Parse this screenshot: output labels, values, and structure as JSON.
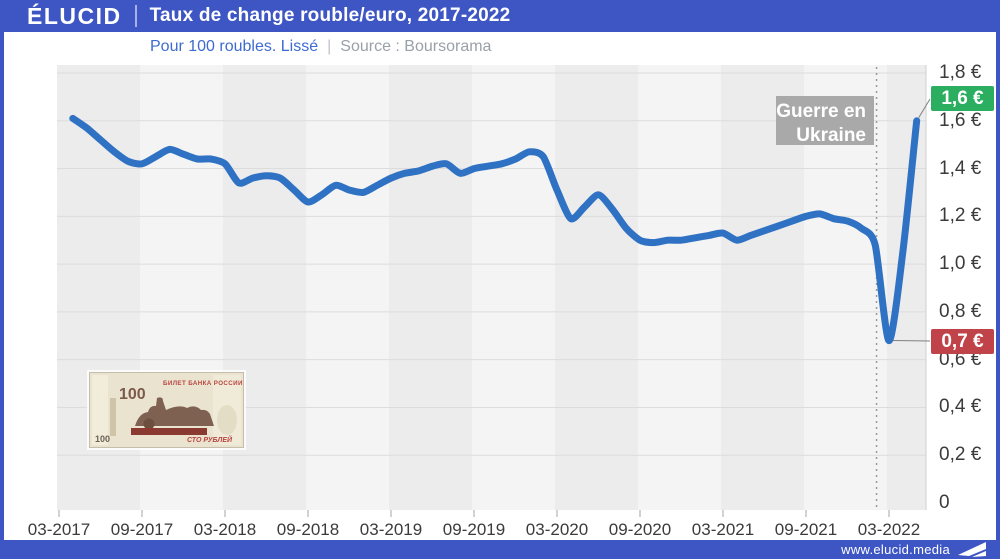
{
  "header": {
    "logo": "ÉLUCID",
    "title": "Taux de change rouble/euro, 2017-2022"
  },
  "subheader": {
    "note": "Pour 100 roubles. Lissé",
    "separator": "|",
    "source": "Source : Boursorama"
  },
  "annotation": {
    "line1": "Guerre en",
    "line2": "Ukraine"
  },
  "badges": {
    "high": {
      "label": "1,6 €",
      "color": "#2BAE60"
    },
    "low": {
      "label": "0,7 €",
      "color": "#BF4348"
    }
  },
  "banknote": {
    "denomination": "100",
    "bank_title": "БИЛЕТ БАНКА РОССИИ",
    "value_text": "СТО РУБЛЕЙ"
  },
  "footer": {
    "url": "www.elucid.media"
  },
  "colors": {
    "brand_blue": "#3E56C4",
    "line_blue": "#2F72C4",
    "subtitle_blue": "#3E6BD0",
    "subtitle_gray": "#9AA0A8",
    "annotation_gray": "#A9A9A9",
    "badge_green": "#2BAE60",
    "badge_red": "#BF4348"
  },
  "chart_data": {
    "type": "line",
    "title": "Taux de change rouble/euro, 2017-2022",
    "subtitle": "Pour 100 roubles. Lissé",
    "source": "Boursorama",
    "unit": "€ pour 100 roubles",
    "ylim": [
      0,
      1.8
    ],
    "grid": true,
    "legend_position": "none",
    "x_ticks": [
      "03-2017",
      "09-2017",
      "03-2018",
      "09-2018",
      "03-2019",
      "09-2019",
      "03-2020",
      "09-2020",
      "03-2021",
      "09-2021",
      "03-2022"
    ],
    "y_ticks": [
      {
        "label": "1,8 €",
        "value": 1.8
      },
      {
        "label": "1,6 €",
        "value": 1.6
      },
      {
        "label": "1,4 €",
        "value": 1.4
      },
      {
        "label": "1,2 €",
        "value": 1.2
      },
      {
        "label": "1,0 €",
        "value": 1.0
      },
      {
        "label": "0,8 €",
        "value": 0.8
      },
      {
        "label": "0,6 €",
        "value": 0.6
      },
      {
        "label": "0,4 €",
        "value": 0.4
      },
      {
        "label": "0,2 €",
        "value": 0.2
      },
      {
        "label": "0",
        "value": 0
      }
    ],
    "event_marker": {
      "label": "Guerre en Ukraine",
      "month_offset_from_03_2017": 59.1
    },
    "callouts": [
      {
        "label": "1,6 €",
        "at": "05-2022",
        "value": 1.6,
        "color": "#2BAE60"
      },
      {
        "label": "0,7 €",
        "at": "03-2022",
        "value": 0.68,
        "color": "#BF4348"
      }
    ],
    "series": [
      {
        "name": "Taux de change rouble/euro (€ pour 100 roubles, lissé)",
        "color": "#2F72C4",
        "points": [
          [
            "04-2017",
            1.61
          ],
          [
            "05-2017",
            1.57
          ],
          [
            "06-2017",
            1.52
          ],
          [
            "07-2017",
            1.47
          ],
          [
            "08-2017",
            1.43
          ],
          [
            "09-2017",
            1.42
          ],
          [
            "10-2017",
            1.45
          ],
          [
            "11-2017",
            1.48
          ],
          [
            "12-2017",
            1.46
          ],
          [
            "01-2018",
            1.44
          ],
          [
            "02-2018",
            1.44
          ],
          [
            "03-2018",
            1.42
          ],
          [
            "04-2018",
            1.34
          ],
          [
            "05-2018",
            1.36
          ],
          [
            "06-2018",
            1.37
          ],
          [
            "07-2018",
            1.36
          ],
          [
            "08-2018",
            1.31
          ],
          [
            "09-2018",
            1.26
          ],
          [
            "10-2018",
            1.29
          ],
          [
            "11-2018",
            1.33
          ],
          [
            "12-2018",
            1.31
          ],
          [
            "01-2019",
            1.3
          ],
          [
            "02-2019",
            1.33
          ],
          [
            "03-2019",
            1.36
          ],
          [
            "04-2019",
            1.38
          ],
          [
            "05-2019",
            1.39
          ],
          [
            "06-2019",
            1.41
          ],
          [
            "07-2019",
            1.42
          ],
          [
            "08-2019",
            1.38
          ],
          [
            "09-2019",
            1.4
          ],
          [
            "10-2019",
            1.41
          ],
          [
            "11-2019",
            1.42
          ],
          [
            "12-2019",
            1.44
          ],
          [
            "01-2020",
            1.47
          ],
          [
            "02-2020",
            1.45
          ],
          [
            "03-2020",
            1.31
          ],
          [
            "04-2020",
            1.19
          ],
          [
            "05-2020",
            1.24
          ],
          [
            "06-2020",
            1.29
          ],
          [
            "07-2020",
            1.23
          ],
          [
            "08-2020",
            1.15
          ],
          [
            "09-2020",
            1.1
          ],
          [
            "10-2020",
            1.09
          ],
          [
            "11-2020",
            1.1
          ],
          [
            "12-2020",
            1.1
          ],
          [
            "01-2021",
            1.11
          ],
          [
            "02-2021",
            1.12
          ],
          [
            "03-2021",
            1.13
          ],
          [
            "04-2021",
            1.1
          ],
          [
            "05-2021",
            1.12
          ],
          [
            "06-2021",
            1.14
          ],
          [
            "07-2021",
            1.16
          ],
          [
            "08-2021",
            1.18
          ],
          [
            "09-2021",
            1.2
          ],
          [
            "10-2021",
            1.21
          ],
          [
            "11-2021",
            1.19
          ],
          [
            "12-2021",
            1.18
          ],
          [
            "01-2022",
            1.15
          ],
          [
            "02-2022",
            1.08
          ],
          [
            "03-2022",
            0.68
          ],
          [
            "04-2022",
            1.05
          ],
          [
            "05-2022",
            1.6
          ]
        ]
      }
    ]
  }
}
